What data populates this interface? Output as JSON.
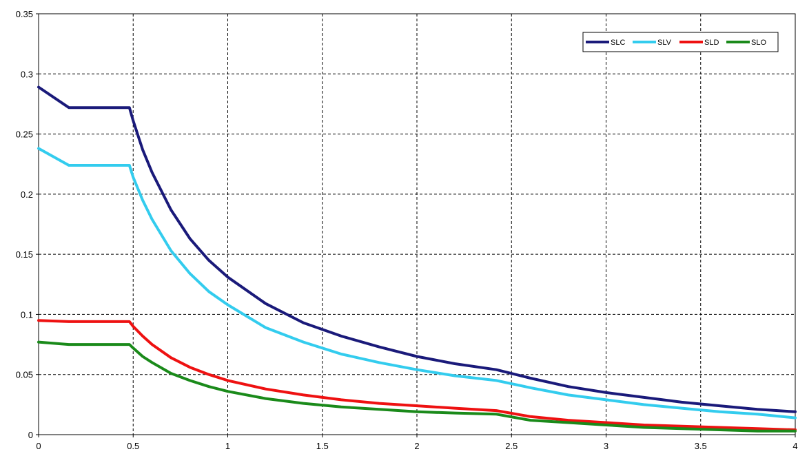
{
  "chart_data": {
    "type": "line",
    "title": "",
    "xlabel": "",
    "ylabel": "",
    "xlim": [
      0,
      4
    ],
    "ylim": [
      0,
      0.35
    ],
    "xticks": [
      0,
      0.5,
      1,
      1.5,
      2,
      2.5,
      3,
      3.5,
      4
    ],
    "xtick_labels": [
      "0",
      "0.5",
      "1",
      "1.5",
      "2",
      "2.5",
      "3",
      "3.5",
      "4"
    ],
    "yticks": [
      0,
      0.05,
      0.1,
      0.15,
      0.2,
      0.25,
      0.3,
      0.35
    ],
    "ytick_labels": [
      "0",
      "0.05",
      "0.1",
      "0.15",
      "0.2",
      "0.25",
      "0.3",
      "0.35"
    ],
    "grid": true,
    "legend_position": "top-right",
    "series": [
      {
        "name": "SLC",
        "color": "#1a1a7a",
        "x": [
          0,
          0.16,
          0.48,
          0.5,
          0.55,
          0.6,
          0.7,
          0.8,
          0.9,
          1.0,
          1.2,
          1.4,
          1.6,
          1.8,
          2.0,
          2.2,
          2.42,
          2.6,
          2.8,
          3.0,
          3.2,
          3.4,
          3.6,
          3.8,
          4.0
        ],
        "y": [
          0.289,
          0.272,
          0.272,
          0.261,
          0.237,
          0.218,
          0.187,
          0.163,
          0.145,
          0.131,
          0.109,
          0.093,
          0.082,
          0.073,
          0.065,
          0.059,
          0.054,
          0.047,
          0.04,
          0.035,
          0.031,
          0.027,
          0.024,
          0.021,
          0.019
        ]
      },
      {
        "name": "SLV",
        "color": "#33ccee",
        "x": [
          0,
          0.16,
          0.48,
          0.5,
          0.55,
          0.6,
          0.7,
          0.8,
          0.9,
          1.0,
          1.2,
          1.4,
          1.6,
          1.8,
          2.0,
          2.2,
          2.42,
          2.6,
          2.8,
          3.0,
          3.2,
          3.4,
          3.6,
          3.8,
          4.0
        ],
        "y": [
          0.238,
          0.224,
          0.224,
          0.214,
          0.195,
          0.179,
          0.153,
          0.134,
          0.119,
          0.108,
          0.089,
          0.077,
          0.067,
          0.06,
          0.054,
          0.049,
          0.045,
          0.039,
          0.033,
          0.029,
          0.025,
          0.022,
          0.019,
          0.017,
          0.014
        ]
      },
      {
        "name": "SLD",
        "color": "#ee1111",
        "x": [
          0,
          0.16,
          0.48,
          0.5,
          0.55,
          0.6,
          0.7,
          0.8,
          0.9,
          1.0,
          1.2,
          1.4,
          1.6,
          1.8,
          2.0,
          2.2,
          2.42,
          2.6,
          2.8,
          3.0,
          3.2,
          3.4,
          3.6,
          3.8,
          4.0
        ],
        "y": [
          0.095,
          0.094,
          0.094,
          0.09,
          0.082,
          0.075,
          0.064,
          0.056,
          0.05,
          0.045,
          0.038,
          0.033,
          0.029,
          0.026,
          0.024,
          0.022,
          0.02,
          0.015,
          0.012,
          0.01,
          0.008,
          0.007,
          0.006,
          0.005,
          0.004
        ]
      },
      {
        "name": "SLO",
        "color": "#1a8a1a",
        "x": [
          0,
          0.16,
          0.48,
          0.5,
          0.55,
          0.6,
          0.7,
          0.8,
          0.9,
          1.0,
          1.2,
          1.4,
          1.6,
          1.8,
          2.0,
          2.2,
          2.42,
          2.6,
          2.8,
          3.0,
          3.2,
          3.4,
          3.6,
          3.8,
          4.0
        ],
        "y": [
          0.077,
          0.075,
          0.075,
          0.072,
          0.065,
          0.06,
          0.051,
          0.045,
          0.04,
          0.036,
          0.03,
          0.026,
          0.023,
          0.021,
          0.019,
          0.018,
          0.017,
          0.012,
          0.01,
          0.008,
          0.006,
          0.005,
          0.004,
          0.003,
          0.003
        ]
      }
    ]
  }
}
